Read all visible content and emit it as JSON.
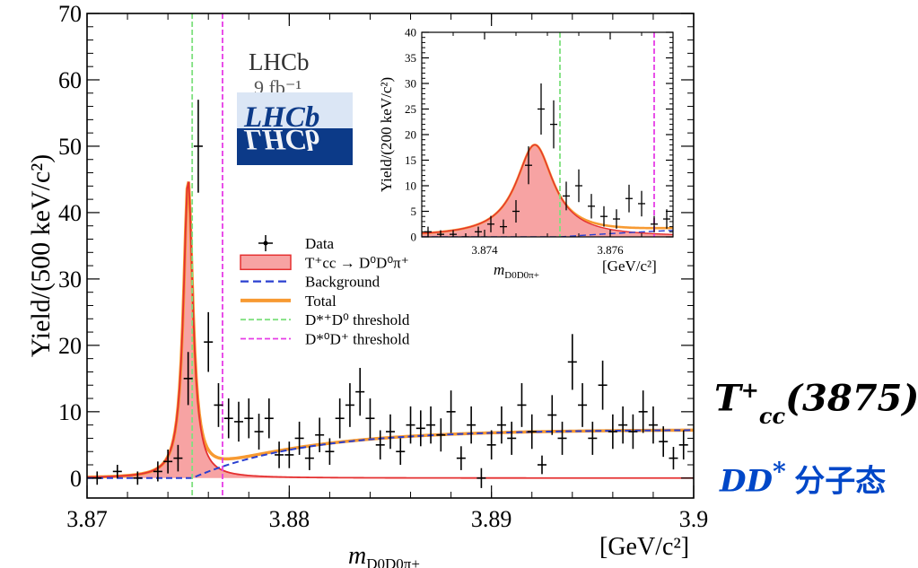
{
  "chart_data": [
    {
      "type": "scatter",
      "xlabel_main": "m",
      "xlabel_sub": "D0D0π+",
      "xunit": "[GeV/c²]",
      "ylabel": "Yield/(500 keV/c²)",
      "xlim": [
        3.87,
        3.9
      ],
      "ylim": [
        -3,
        70
      ],
      "x_ticks": [
        "3.87",
        "3.88",
        "3.89",
        "3.9"
      ],
      "y_ticks": [
        "0",
        "10",
        "20",
        "30",
        "40",
        "50",
        "60",
        "70"
      ],
      "experiment": "LHCb",
      "lumi_label": "9 fb⁻¹",
      "thresholds": {
        "dstar_plus_d0": 3.8752,
        "dstar0_dplus": 3.8767
      },
      "data_points": [
        [
          3.8705,
          0.0,
          1.0
        ],
        [
          3.8715,
          1.0,
          1.0
        ],
        [
          3.8725,
          0.0,
          1.0
        ],
        [
          3.8735,
          1.0,
          1.5
        ],
        [
          3.874,
          2.5,
          1.8
        ],
        [
          3.8745,
          3.0,
          2.0
        ],
        [
          3.875,
          15.0,
          4.0
        ],
        [
          3.8755,
          50.0,
          7.0
        ],
        [
          3.876,
          20.5,
          4.5
        ],
        [
          3.8765,
          11.0,
          3.3
        ],
        [
          3.877,
          9.0,
          3.0
        ],
        [
          3.8775,
          8.5,
          3.0
        ],
        [
          3.878,
          9.0,
          3.0
        ],
        [
          3.8785,
          7.0,
          2.7
        ],
        [
          3.879,
          9.0,
          3.0
        ],
        [
          3.8795,
          3.5,
          2.0
        ],
        [
          3.88,
          3.5,
          2.0
        ],
        [
          3.8805,
          6.0,
          2.5
        ],
        [
          3.881,
          3.0,
          1.8
        ],
        [
          3.8815,
          6.5,
          2.6
        ],
        [
          3.882,
          4.0,
          2.0
        ],
        [
          3.8825,
          9.0,
          3.0
        ],
        [
          3.883,
          11.0,
          3.3
        ],
        [
          3.8835,
          13.0,
          3.6
        ],
        [
          3.884,
          9.0,
          3.0
        ],
        [
          3.8845,
          5.0,
          2.2
        ],
        [
          3.885,
          7.0,
          2.6
        ],
        [
          3.8855,
          4.0,
          2.0
        ],
        [
          3.886,
          8.0,
          2.8
        ],
        [
          3.8865,
          7.5,
          2.7
        ],
        [
          3.887,
          8.0,
          2.8
        ],
        [
          3.8875,
          6.5,
          2.5
        ],
        [
          3.888,
          10.0,
          3.2
        ],
        [
          3.8885,
          3.0,
          1.8
        ],
        [
          3.889,
          8.0,
          2.8
        ],
        [
          3.8895,
          0.0,
          1.5
        ],
        [
          3.89,
          5.0,
          2.2
        ],
        [
          3.8905,
          8.0,
          2.8
        ],
        [
          3.891,
          6.0,
          2.5
        ],
        [
          3.8915,
          11.0,
          3.3
        ],
        [
          3.892,
          7.0,
          2.6
        ],
        [
          3.8925,
          2.0,
          1.4
        ],
        [
          3.893,
          9.5,
          3.0
        ],
        [
          3.8935,
          6.0,
          2.5
        ],
        [
          3.894,
          17.5,
          4.2
        ],
        [
          3.8945,
          11.0,
          3.3
        ],
        [
          3.895,
          6.0,
          2.5
        ],
        [
          3.8955,
          14.0,
          3.7
        ],
        [
          3.896,
          7.0,
          2.6
        ],
        [
          3.8965,
          8.0,
          2.8
        ],
        [
          3.897,
          7.0,
          2.6
        ],
        [
          3.8975,
          10.0,
          3.2
        ],
        [
          3.898,
          8.0,
          2.8
        ],
        [
          3.8985,
          5.5,
          2.3
        ],
        [
          3.899,
          3.0,
          1.7
        ],
        [
          3.8995,
          5.0,
          2.2
        ]
      ],
      "legend": {
        "entries": [
          {
            "kind": "data",
            "label": "Data"
          },
          {
            "kind": "signal",
            "label": "T⁺cc → D⁰D⁰π⁺"
          },
          {
            "kind": "background",
            "label": "Background"
          },
          {
            "kind": "total",
            "label": "Total"
          },
          {
            "kind": "thr1",
            "label": "D*⁺D⁰ threshold"
          },
          {
            "kind": "thr2",
            "label": "D*⁰D⁺ threshold"
          }
        ]
      },
      "colors": {
        "signal_fill": "#f7a3a3",
        "signal_line": "#e53030",
        "background": "#2a3fd0",
        "total": "#f79a32",
        "thr1": "#7ee07e",
        "thr2": "#e63ce6",
        "data": "#000000"
      }
    },
    {
      "type": "scatter",
      "role": "inset",
      "xlabel_main": "m",
      "xlabel_sub": "D0D0π+",
      "xunit": "[GeV/c²]",
      "ylabel": "Yield/(200 keV/c²)",
      "xlim": [
        3.873,
        3.877
      ],
      "ylim": [
        0,
        40
      ],
      "x_ticks": [
        "3.874",
        "3.876"
      ],
      "y_ticks": [
        "0",
        "5",
        "10",
        "15",
        "20",
        "25",
        "30",
        "35",
        "40"
      ],
      "data_points": [
        [
          3.8731,
          1.0,
          1.0
        ],
        [
          3.8733,
          0.5,
          0.8
        ],
        [
          3.8735,
          0.5,
          0.8
        ],
        [
          3.8737,
          0.0,
          0.7
        ],
        [
          3.8739,
          1.0,
          1.0
        ],
        [
          3.8741,
          2.5,
          1.6
        ],
        [
          3.8743,
          2.0,
          1.4
        ],
        [
          3.8745,
          5.0,
          2.2
        ],
        [
          3.8747,
          14.0,
          3.7
        ],
        [
          3.8749,
          25.0,
          5.0
        ],
        [
          3.8751,
          22.0,
          4.7
        ],
        [
          3.8753,
          8.0,
          2.8
        ],
        [
          3.8755,
          10.0,
          3.2
        ],
        [
          3.8757,
          6.0,
          2.4
        ],
        [
          3.8759,
          4.0,
          2.0
        ],
        [
          3.8761,
          3.5,
          1.9
        ],
        [
          3.8763,
          7.5,
          2.7
        ],
        [
          3.8765,
          6.5,
          2.5
        ],
        [
          3.8767,
          2.5,
          1.6
        ],
        [
          3.8769,
          3.5,
          1.9
        ]
      ],
      "thresholds": {
        "dstar_plus_d0": 3.8752,
        "dstar0_dplus": 3.8767
      }
    }
  ],
  "side": {
    "name_base": "T",
    "name_sup": "+",
    "name_sub": "cc",
    "name_mass": "(3875)",
    "desc_latin": "DD",
    "desc_star": "*",
    "desc_cn": "分子态"
  }
}
